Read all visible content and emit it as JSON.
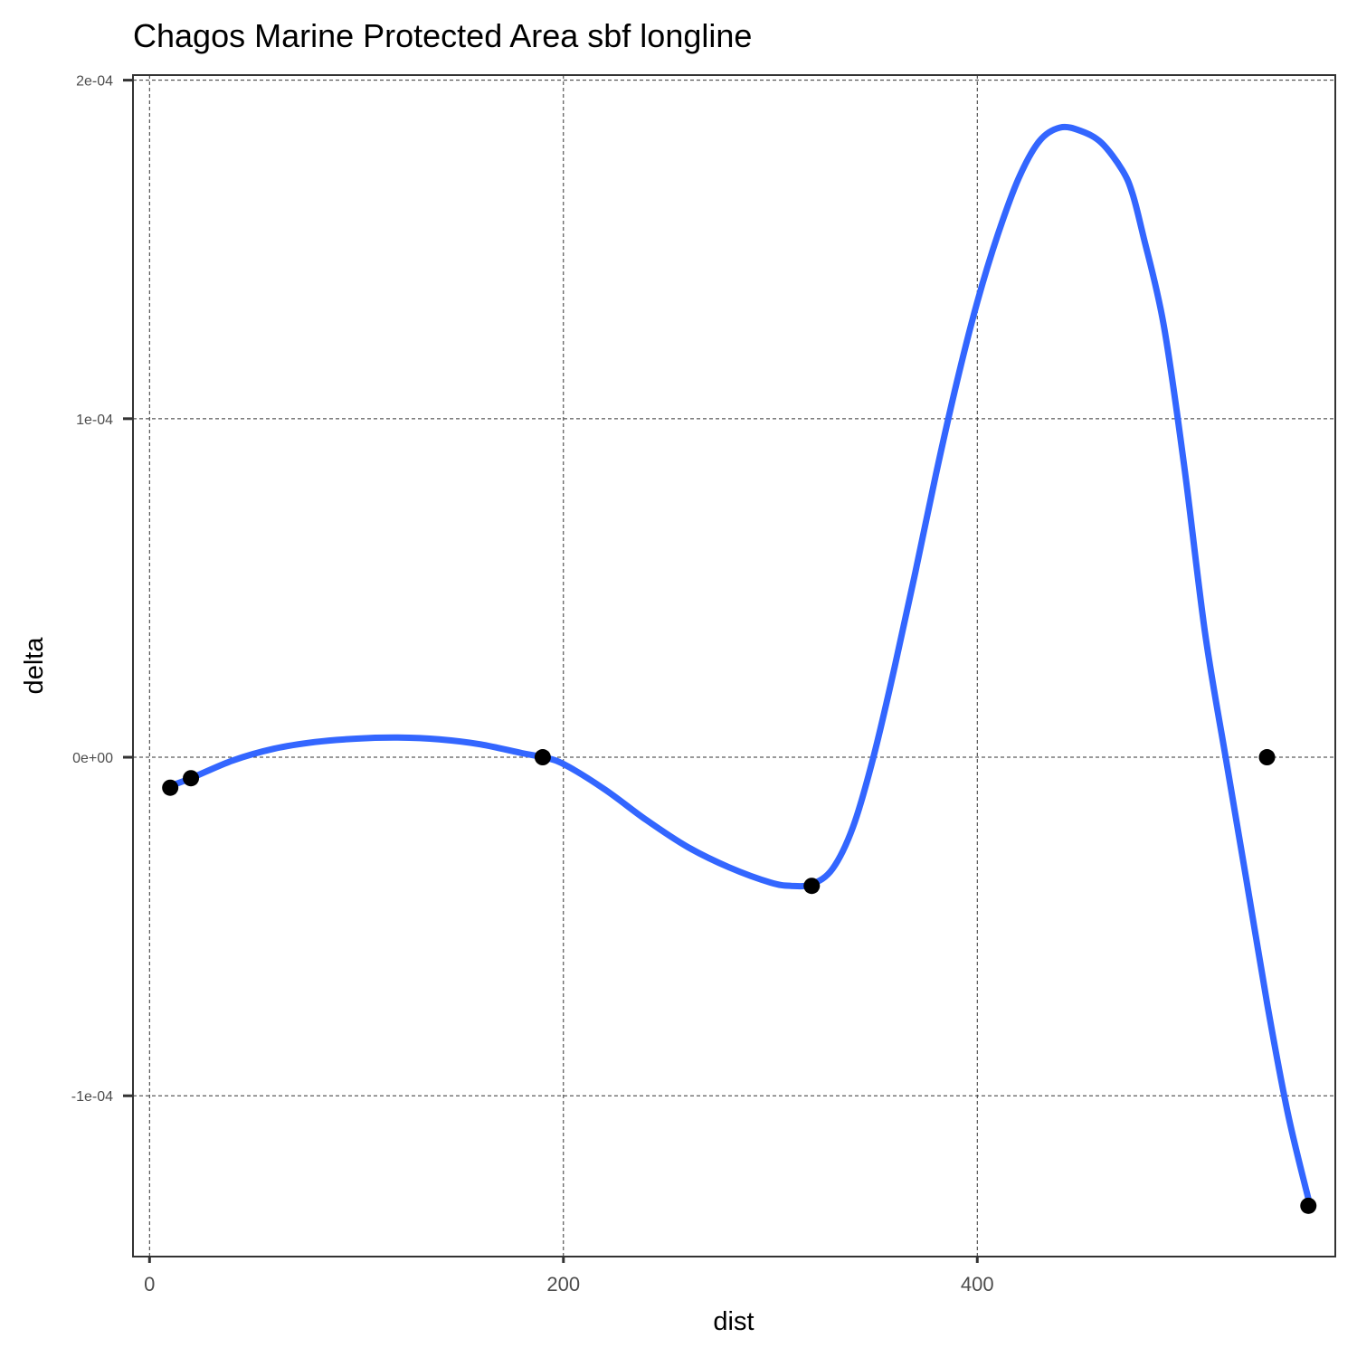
{
  "chart_data": {
    "type": "scatter",
    "title": "Chagos Marine Protected Area sbf longline",
    "xlabel": "dist",
    "ylabel": "delta",
    "xlim": [
      -8,
      573
    ],
    "ylim": [
      -0.0001475,
      0.0002015
    ],
    "x_ticks": [
      {
        "value": 0,
        "label": "0"
      },
      {
        "value": 200,
        "label": "200"
      },
      {
        "value": 400,
        "label": "400"
      }
    ],
    "y_ticks": [
      {
        "value": -0.0001,
        "label": "-1e-04"
      },
      {
        "value": 0,
        "label": "0e+00"
      },
      {
        "value": 0.0001,
        "label": "1e-04"
      },
      {
        "value": 0.0002,
        "label": "2e-04"
      }
    ],
    "grid": true,
    "legend": "none",
    "series": [
      {
        "kind": "points",
        "color": "#000000",
        "x": [
          10,
          20,
          190,
          320,
          540,
          560
        ],
        "y": [
          -9e-06,
          -6.2e-06,
          0.0,
          -3.8e-05,
          0.0,
          -0.0001325
        ]
      },
      {
        "kind": "smooth-line",
        "color": "#3366FF",
        "x": [
          10,
          20,
          40,
          60,
          80,
          100,
          120,
          140,
          160,
          180,
          190,
          200,
          220,
          240,
          260,
          280,
          300,
          310,
          320,
          330,
          340,
          350,
          360,
          370,
          380,
          390,
          400,
          410,
          420,
          430,
          440,
          450,
          460,
          470,
          475,
          480,
          490,
          500,
          510,
          520,
          530,
          540,
          550,
          560
        ],
        "y": [
          -8.5e-06,
          -6.2e-06,
          -1e-06,
          2.5e-06,
          4.5e-06,
          5.5e-06,
          5.8e-06,
          5.3e-06,
          3.8e-06,
          1.2e-06,
          0.0,
          -2e-06,
          -9.5e-06,
          -1.85e-05,
          -2.65e-05,
          -3.25e-05,
          -3.7e-05,
          -3.8e-05,
          -3.75e-05,
          -3.3e-05,
          -2.05e-05,
          5e-07,
          2.65e-05,
          5.45e-05,
          8.35e-05,
          0.0001105,
          0.0001345,
          0.0001545,
          0.000171,
          0.000182,
          0.000186,
          0.000185,
          0.0001815,
          0.0001735,
          0.0001665,
          0.0001545,
          0.000128,
          8.6e-05,
          3.7e-05,
          0.0,
          -3.6e-05,
          -7.25e-05,
          -0.000105,
          -0.0001305
        ]
      }
    ]
  }
}
